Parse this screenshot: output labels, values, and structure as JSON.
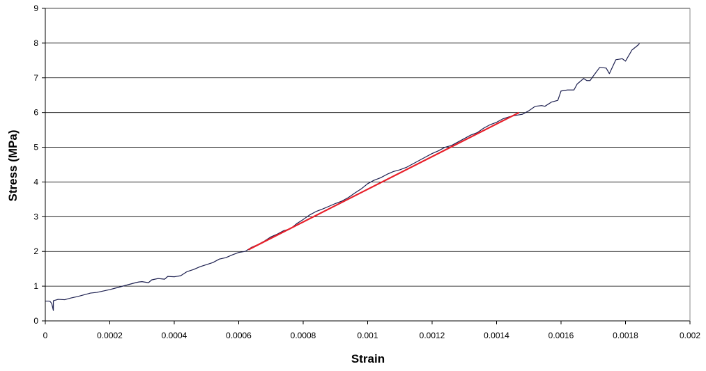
{
  "chart_data": {
    "type": "line",
    "xlabel": "Strain",
    "ylabel": "Stress (MPa)",
    "xlim": [
      0,
      0.002
    ],
    "ylim": [
      0,
      9
    ],
    "x_ticks": [
      "0",
      "0.0002",
      "0.0004",
      "0.0006",
      "0.0008",
      "0.001",
      "0.0012",
      "0.0014",
      "0.0016",
      "0.0018",
      "0.002"
    ],
    "y_ticks": [
      "0",
      "1",
      "2",
      "3",
      "4",
      "5",
      "6",
      "7",
      "8",
      "9"
    ],
    "grid": "horizontal",
    "series": [
      {
        "color": "#1c1f4f",
        "points": [
          [
            0,
            0.57
          ],
          [
            1e-05,
            0.57
          ],
          [
            1.5e-05,
            0.56
          ],
          [
            2e-05,
            0.5
          ],
          [
            2.5e-05,
            0.3
          ],
          [
            2.5e-05,
            0.58
          ],
          [
            4e-05,
            0.62
          ],
          [
            6e-05,
            0.61
          ],
          [
            8e-05,
            0.66
          ],
          [
            0.0001,
            0.7
          ],
          [
            0.00012,
            0.75
          ],
          [
            0.00014,
            0.8
          ],
          [
            0.00016,
            0.82
          ],
          [
            0.00018,
            0.86
          ],
          [
            0.0002,
            0.9
          ],
          [
            0.00022,
            0.95
          ],
          [
            0.00024,
            1.0
          ],
          [
            0.00026,
            1.05
          ],
          [
            0.00028,
            1.1
          ],
          [
            0.00029,
            1.12
          ],
          [
            0.0003,
            1.13
          ],
          [
            0.00032,
            1.1
          ],
          [
            0.00033,
            1.18
          ],
          [
            0.00035,
            1.22
          ],
          [
            0.00037,
            1.2
          ],
          [
            0.00038,
            1.28
          ],
          [
            0.0004,
            1.27
          ],
          [
            0.00042,
            1.3
          ],
          [
            0.00044,
            1.42
          ],
          [
            0.00046,
            1.48
          ],
          [
            0.00048,
            1.56
          ],
          [
            0.0005,
            1.62
          ],
          [
            0.00052,
            1.68
          ],
          [
            0.00054,
            1.78
          ],
          [
            0.00056,
            1.82
          ],
          [
            0.00058,
            1.9
          ],
          [
            0.0006,
            1.97
          ],
          [
            0.00062,
            2.0
          ],
          [
            0.00064,
            2.12
          ],
          [
            0.00066,
            2.2
          ],
          [
            0.00068,
            2.3
          ],
          [
            0.0007,
            2.42
          ],
          [
            0.00072,
            2.5
          ],
          [
            0.00074,
            2.6
          ],
          [
            0.00076,
            2.65
          ],
          [
            0.00078,
            2.8
          ],
          [
            0.0008,
            2.92
          ],
          [
            0.00082,
            3.05
          ],
          [
            0.00084,
            3.15
          ],
          [
            0.00086,
            3.22
          ],
          [
            0.00088,
            3.3
          ],
          [
            0.0009,
            3.38
          ],
          [
            0.00092,
            3.45
          ],
          [
            0.00094,
            3.55
          ],
          [
            0.00096,
            3.68
          ],
          [
            0.00098,
            3.8
          ],
          [
            0.001,
            3.95
          ],
          [
            0.00102,
            4.05
          ],
          [
            0.00104,
            4.12
          ],
          [
            0.00106,
            4.22
          ],
          [
            0.00108,
            4.3
          ],
          [
            0.0011,
            4.35
          ],
          [
            0.00112,
            4.42
          ],
          [
            0.00114,
            4.52
          ],
          [
            0.00116,
            4.62
          ],
          [
            0.00118,
            4.72
          ],
          [
            0.0012,
            4.82
          ],
          [
            0.00122,
            4.9
          ],
          [
            0.00124,
            5.0
          ],
          [
            0.00126,
            5.05
          ],
          [
            0.00128,
            5.15
          ],
          [
            0.0013,
            5.25
          ],
          [
            0.00132,
            5.35
          ],
          [
            0.00134,
            5.42
          ],
          [
            0.00136,
            5.55
          ],
          [
            0.00138,
            5.65
          ],
          [
            0.0014,
            5.72
          ],
          [
            0.00142,
            5.82
          ],
          [
            0.00144,
            5.88
          ],
          [
            0.00146,
            5.92
          ],
          [
            0.00148,
            5.95
          ],
          [
            0.0015,
            6.05
          ],
          [
            0.00152,
            6.18
          ],
          [
            0.00154,
            6.2
          ],
          [
            0.00155,
            6.18
          ],
          [
            0.00157,
            6.3
          ],
          [
            0.00159,
            6.35
          ],
          [
            0.0016,
            6.62
          ],
          [
            0.00162,
            6.65
          ],
          [
            0.00164,
            6.65
          ],
          [
            0.00165,
            6.82
          ],
          [
            0.00167,
            6.98
          ],
          [
            0.00168,
            6.92
          ],
          [
            0.00169,
            6.92
          ],
          [
            0.0017,
            7.05
          ],
          [
            0.00172,
            7.3
          ],
          [
            0.00174,
            7.28
          ],
          [
            0.00175,
            7.12
          ],
          [
            0.00177,
            7.52
          ],
          [
            0.00179,
            7.55
          ],
          [
            0.0018,
            7.48
          ],
          [
            0.00182,
            7.8
          ],
          [
            0.00184,
            7.95
          ],
          [
            0.001843,
            7.99
          ]
        ]
      },
      {
        "color": "#e8202a",
        "points": [
          [
            0.00063,
            2.05
          ],
          [
            0.00147,
            6.0
          ]
        ]
      }
    ]
  }
}
